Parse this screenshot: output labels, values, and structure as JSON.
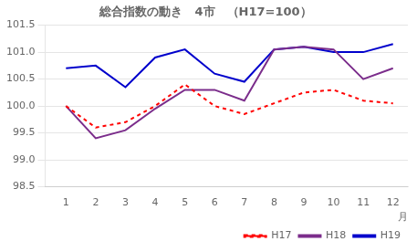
{
  "chart_data": {
    "type": "line",
    "title": "総合指数の動き　4市　（H17=100）",
    "xlabel": "月",
    "x": [
      1,
      2,
      3,
      4,
      5,
      6,
      7,
      8,
      9,
      10,
      11,
      12
    ],
    "series": [
      {
        "name": "H17",
        "color": "#ff0000",
        "line_style": "dashed",
        "values": [
          100.0,
          99.6,
          99.7,
          100.0,
          100.4,
          100.0,
          99.85,
          100.05,
          100.25,
          100.3,
          100.1,
          100.05
        ]
      },
      {
        "name": "H18",
        "color": "#7b2d8b",
        "line_style": "solid",
        "values": [
          100.0,
          99.4,
          99.55,
          99.95,
          100.3,
          100.3,
          100.1,
          101.05,
          101.1,
          101.05,
          100.5,
          100.7
        ]
      },
      {
        "name": "H19",
        "color": "#0000cc",
        "line_style": "solid",
        "values": [
          100.7,
          100.75,
          100.35,
          100.9,
          101.05,
          100.6,
          100.45,
          101.05,
          101.1,
          101.0,
          101.0,
          101.15
        ]
      }
    ],
    "xlim": [
      0.3,
      12.5
    ],
    "xticks": [
      1,
      2,
      3,
      4,
      5,
      6,
      7,
      8,
      9,
      10,
      11,
      12
    ],
    "ylim": [
      98.5,
      101.5
    ],
    "yticks": [
      98.5,
      {
        "value": 99.0,
        "label": "99.0"
      },
      99.5,
      {
        "value": 100.0,
        "label": "100.0"
      },
      100.5,
      {
        "value": 101.0,
        "label": "101.0"
      },
      101.5
    ],
    "grid": "y",
    "legend": "lower right"
  }
}
